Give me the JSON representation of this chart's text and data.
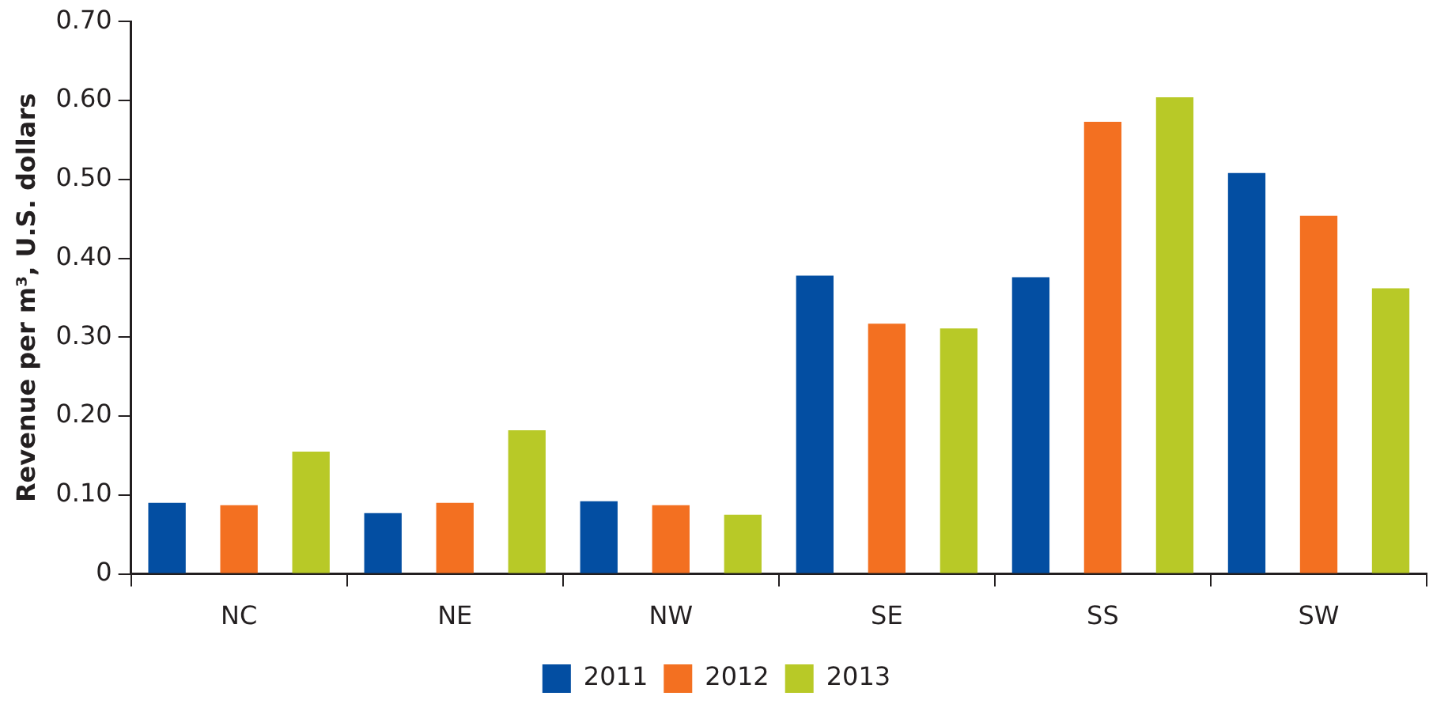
{
  "chart_data": {
    "type": "bar",
    "ylabel": "Revenue per m³, U.S. dollars",
    "categories": [
      "NC",
      "NE",
      "NW",
      "SE",
      "SS",
      "SW"
    ],
    "series": [
      {
        "name": "2011",
        "color": "#034ea2",
        "values": [
          0.09,
          0.077,
          0.092,
          0.378,
          0.376,
          0.508
        ]
      },
      {
        "name": "2012",
        "color": "#f37021",
        "values": [
          0.087,
          0.09,
          0.087,
          0.317,
          0.573,
          0.454
        ]
      },
      {
        "name": "2013",
        "color": "#b8c927",
        "values": [
          0.155,
          0.182,
          0.075,
          0.311,
          0.604,
          0.362
        ]
      }
    ],
    "ylim": [
      0,
      0.7
    ],
    "yticks": [
      0,
      {
        "value": 0.1,
        "label": "0.10"
      },
      {
        "value": 0.2,
        "label": "0.20"
      },
      {
        "value": 0.3,
        "label": "0.30"
      },
      {
        "value": 0.4,
        "label": "0.40"
      },
      {
        "value": 0.5,
        "label": "0.50"
      },
      {
        "value": 0.6,
        "label": "0.60"
      },
      {
        "value": 0.7,
        "label": "0.70"
      }
    ],
    "grid": false,
    "legend": "bottom"
  }
}
